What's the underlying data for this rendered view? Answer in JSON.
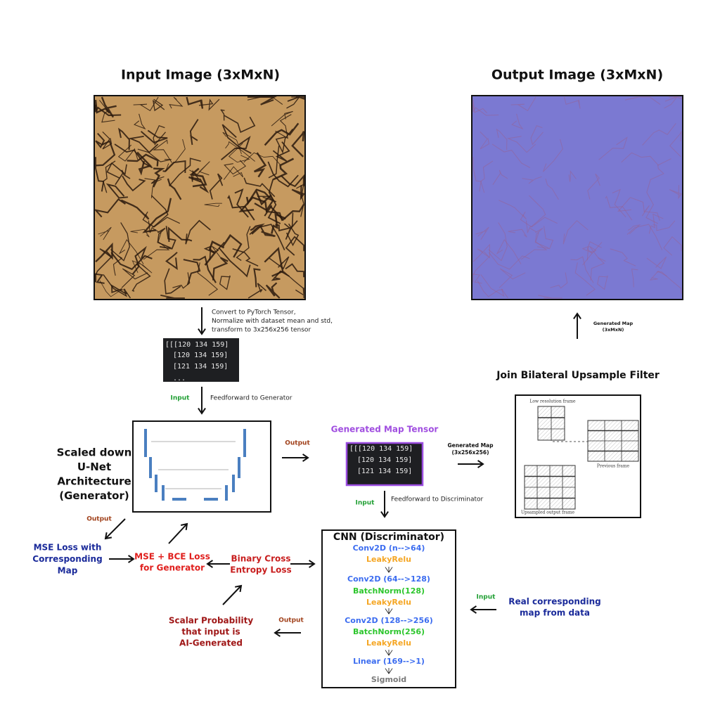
{
  "input_image": {
    "title": "Input Image (3xMxN)"
  },
  "output_image": {
    "title": "Output Image (3xMxN)"
  },
  "convert": {
    "lines": [
      "Convert to PyTorch Tensor,",
      "Normalize with dataset mean and std,",
      "transform to 3x256x256 tensor"
    ]
  },
  "input_tensor": {
    "lines": [
      "[[[120 134 159]",
      "[120 134 159]",
      "[121 134 159]",
      "..."
    ]
  },
  "feed_generator": {
    "label": "Input",
    "text": "Feedforward to Generator"
  },
  "generator": {
    "lines": [
      "Scaled down",
      "U-Net",
      "Architecture",
      "(Generator)"
    ]
  },
  "generator_output": {
    "label": "Output"
  },
  "generated_tensor": {
    "title": "Generated Map Tensor",
    "lines": [
      "[[[120 134 159]",
      "[120 134 159]",
      "[121 134 159]"
    ]
  },
  "to_filter": {
    "lines": [
      "Generated Map",
      "(3x256x256)"
    ]
  },
  "filter": {
    "title": "Join Bilateral Upsample Filter",
    "labels": [
      "Low resolution frame",
      "Previous frame",
      "Upsampled output frame"
    ]
  },
  "to_output": {
    "lines": [
      "Generated Map",
      "(3xMxN)"
    ]
  },
  "feed_discriminator": {
    "label": "Input",
    "text": "Feedforward to Discriminator"
  },
  "discriminator": {
    "title": "CNN (Discriminator)",
    "layers": [
      {
        "text": "Conv2D (n-->64)",
        "color": "#3b6cf0"
      },
      {
        "text": "LeakyRelu",
        "color": "#f5a623"
      },
      {
        "text": "Conv2D (64-->128)",
        "color": "#3b6cf0"
      },
      {
        "text": "BatchNorm(128)",
        "color": "#2dc62d"
      },
      {
        "text": "LeakyRelu",
        "color": "#f5a623"
      },
      {
        "text": "Conv2D (128-->256)",
        "color": "#3b6cf0"
      },
      {
        "text": "BatchNorm(256)",
        "color": "#2dc62d"
      },
      {
        "text": "LeakyRelu",
        "color": "#f5a623"
      },
      {
        "text": "Linear (169-->1)",
        "color": "#3b6cf0"
      },
      {
        "text": "Sigmoid",
        "color": "#7a7a7a"
      }
    ]
  },
  "mse_output": {
    "label": "Output"
  },
  "mse_loss": {
    "lines": [
      "MSE Loss with",
      "Corresponding",
      "Map"
    ]
  },
  "combined_loss": {
    "lines": [
      "MSE + BCE Loss",
      "for Generator"
    ]
  },
  "bce_loss": {
    "lines": [
      "Binary Cross",
      "Entropy Loss"
    ]
  },
  "scalar": {
    "lines": [
      "Scalar Probability",
      "that input is",
      "AI-Generated"
    ]
  },
  "scalar_output": {
    "label": "Output"
  },
  "real_map": {
    "label": "Input",
    "lines": [
      "Real corresponding",
      "map from data"
    ]
  }
}
